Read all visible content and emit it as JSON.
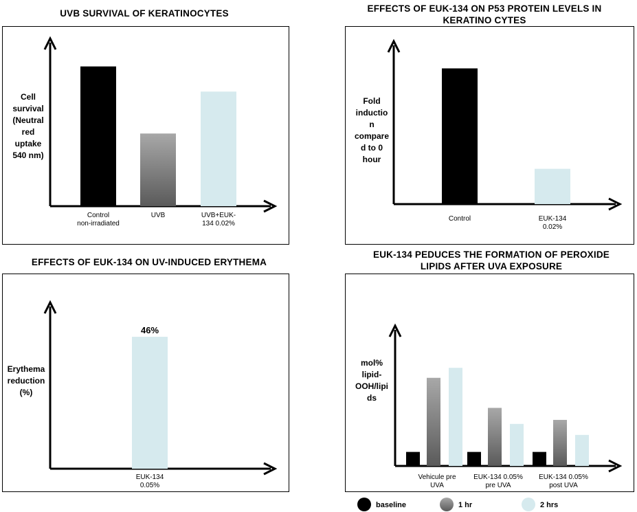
{
  "chart_data": [
    {
      "type": "bar",
      "title": "UVB SURVIVAL OF KERATINOCYTES",
      "ylabel_lines": [
        "Cell",
        "survival",
        "(Neutral",
        "red",
        "uptake",
        "540 nm)"
      ],
      "categories": [
        [
          "Control",
          "non-irradiated"
        ],
        [
          "UVB"
        ],
        [
          "UVB+EUK-",
          "134 0.02%"
        ]
      ],
      "values": [
        100,
        52,
        82
      ],
      "ylim": [
        0,
        120
      ],
      "colors": [
        "#000000",
        "grad-gray",
        "#d6eaee"
      ]
    },
    {
      "type": "bar",
      "title_lines": [
        "EFFECTS OF EUK-134 ON P53 PROTEIN LEVELS IN",
        "KERATINO CYTES"
      ],
      "ylabel_lines": [
        "Fold",
        "inductio",
        "n",
        "compare",
        "d to 0",
        "hour"
      ],
      "categories": [
        [
          "Control"
        ],
        [
          "EUK-134",
          "0.02%"
        ]
      ],
      "values": [
        100,
        26
      ],
      "ylim": [
        0,
        120
      ],
      "colors": [
        "#000000",
        "#d6eaee"
      ]
    },
    {
      "type": "bar",
      "title": "EFFECTS OF EUK-134 ON UV-INDUCED ERYTHEMA",
      "ylabel_lines": [
        "Erythema",
        "reduction",
        "(%)"
      ],
      "categories": [
        [
          "EUK-134",
          "0.05%"
        ]
      ],
      "values": [
        46
      ],
      "data_labels": [
        "46%"
      ],
      "ylim": [
        0,
        58
      ],
      "colors": [
        "#d6eaee"
      ]
    },
    {
      "type": "bar",
      "title_lines": [
        "EUK-134 PEDUCES THE FORMATION OF PEROXIDE",
        "LIPIDS AFTER UVA EXPOSURE"
      ],
      "ylabel_lines": [
        "mol%",
        "lipid-",
        "OOH/lipi",
        "ds"
      ],
      "categories": [
        [
          "Vehicule pre",
          "UVA"
        ],
        [
          "EUK-134 0.05%",
          "pre UVA"
        ],
        [
          "EUK-134 0.05%",
          "post UVA"
        ]
      ],
      "series": [
        {
          "name": "baseline",
          "values": [
            14,
            14,
            14
          ],
          "color": "#000000"
        },
        {
          "name": "1 hr",
          "values": [
            88,
            58,
            46
          ],
          "color": "grad-gray"
        },
        {
          "name": "2 hrs",
          "values": [
            98,
            42,
            31
          ],
          "color": "#d6eaee"
        }
      ],
      "ylim": [
        0,
        140
      ],
      "legend": "bottom"
    }
  ]
}
